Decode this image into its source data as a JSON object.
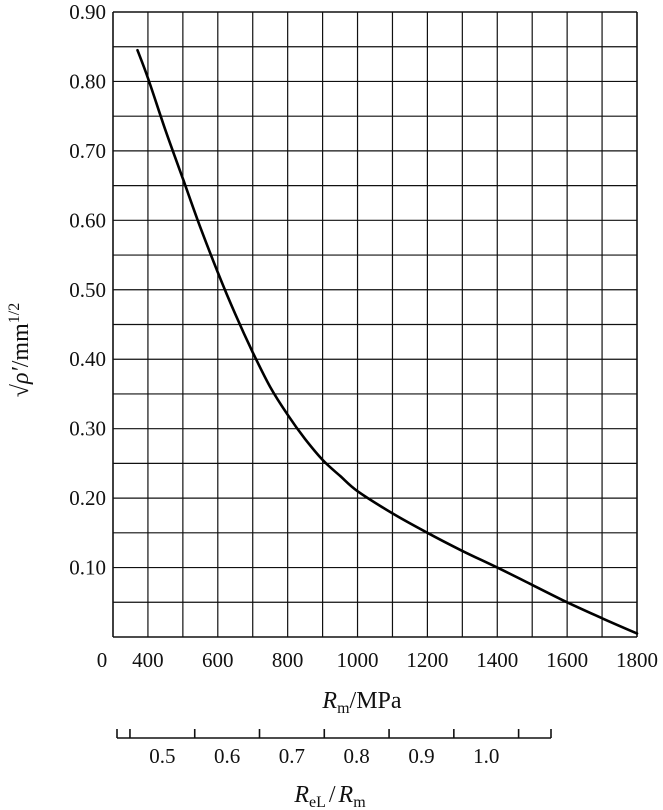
{
  "chart_data": {
    "type": "line",
    "title": "",
    "xlabel_parts": {
      "main": "R",
      "sub": "m",
      "unit": "/MPa"
    },
    "ylabel_parts": {
      "root": "√ρ′",
      "unit": "/mm",
      "sup": "1/2"
    },
    "secondary_xlabel_parts": {
      "a": "R",
      "a_sub": "eL",
      "sep": "/",
      "b": "R",
      "b_sub": "m"
    },
    "xlim": [
      300,
      1800
    ],
    "ylim": [
      0,
      0.9
    ],
    "x_ticks": [
      400,
      600,
      800,
      1000,
      1200,
      1400,
      1600,
      1800
    ],
    "x_origin_label": "0",
    "y_ticks": [
      0.1,
      0.2,
      0.3,
      0.4,
      0.5,
      0.6,
      0.7,
      0.8,
      0.9
    ],
    "y_tick_labels": [
      "0.10",
      "0.20",
      "0.30",
      "0.40",
      "0.50",
      "0.60",
      "0.70",
      "0.80",
      "0.90"
    ],
    "grid": {
      "x_step": 100,
      "y_step": 0.05
    },
    "secondary_axis": {
      "range": [
        0.43,
        1.1
      ],
      "labeled_ticks": [
        0.5,
        0.6,
        0.7,
        0.8,
        0.9,
        1.0
      ],
      "tick_labels": [
        "0.5",
        "0.6",
        "0.7",
        "0.8",
        "0.9",
        "1.0"
      ],
      "minor_ticks": [
        0.45,
        0.55,
        0.65,
        0.75,
        0.85,
        0.95,
        1.05
      ]
    },
    "series": [
      {
        "x": [
          370,
          400,
          450,
          500,
          550,
          600,
          650,
          700,
          750,
          800,
          850,
          900,
          950,
          1000,
          1100,
          1200,
          1300,
          1400,
          1500,
          1600,
          1700,
          1800
        ],
        "y": [
          0.845,
          0.805,
          0.73,
          0.66,
          0.59,
          0.525,
          0.465,
          0.41,
          0.36,
          0.32,
          0.285,
          0.255,
          0.232,
          0.21,
          0.178,
          0.15,
          0.124,
          0.1,
          0.075,
          0.05,
          0.027,
          0.005
        ]
      }
    ]
  }
}
